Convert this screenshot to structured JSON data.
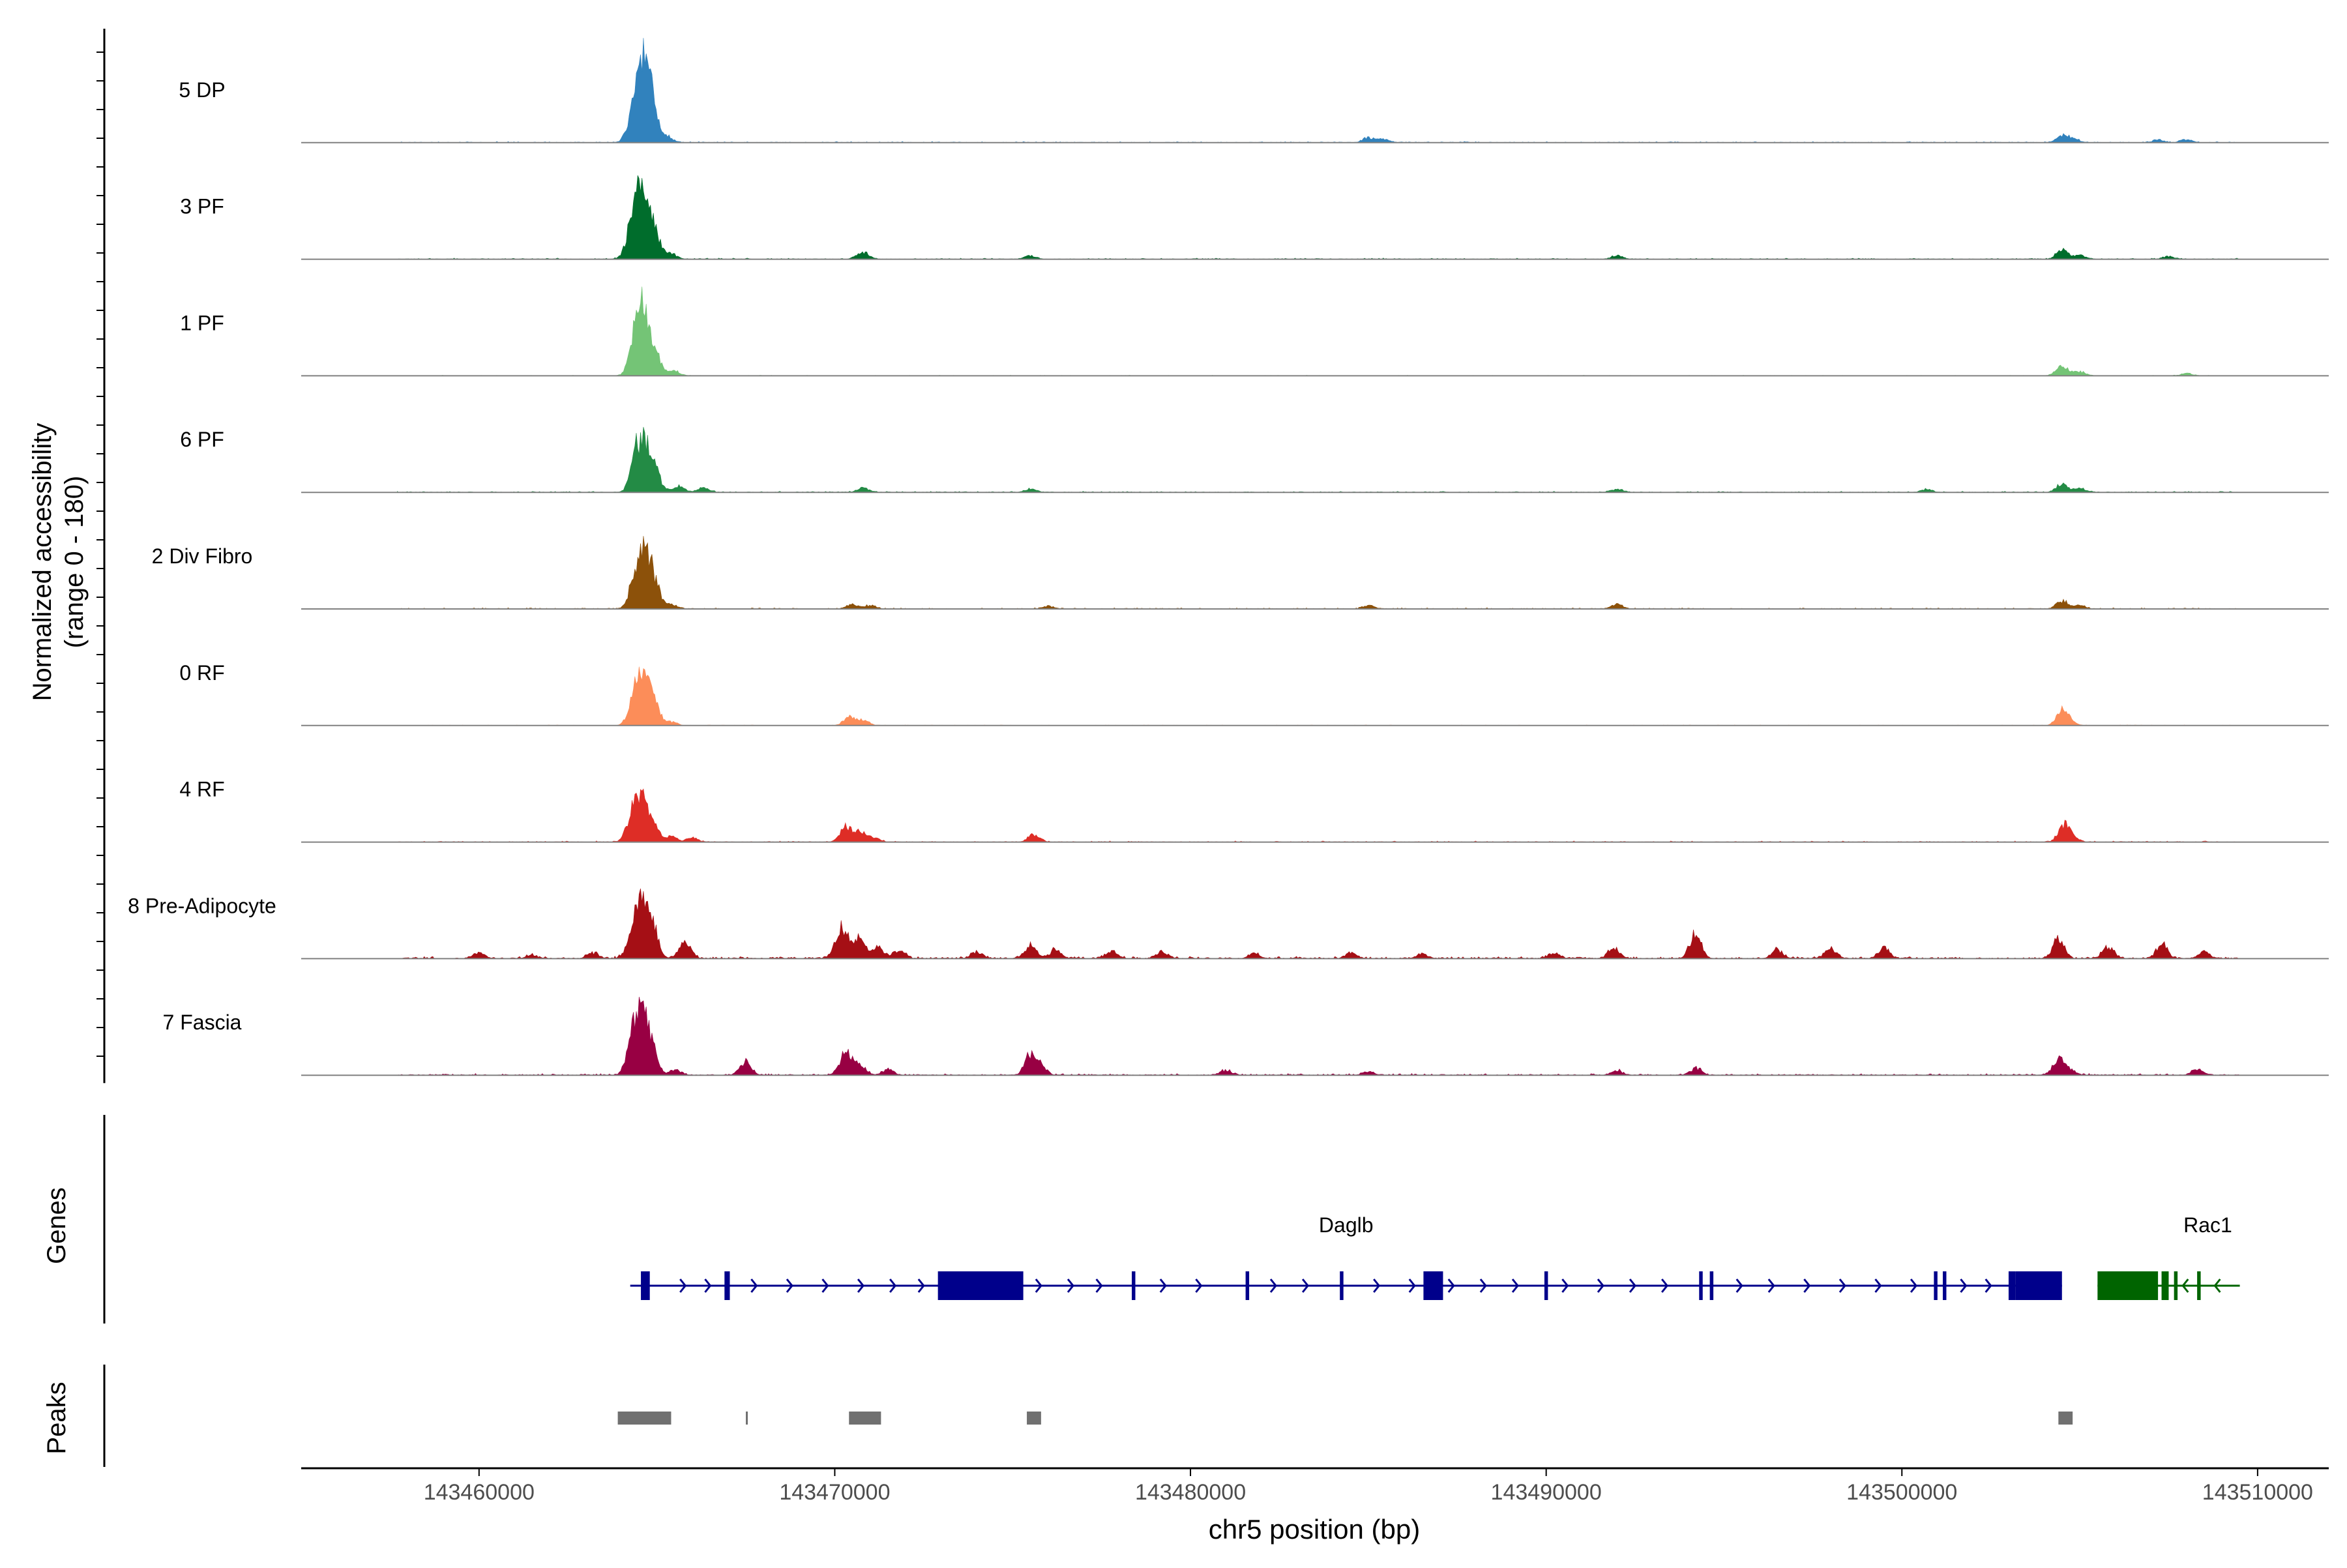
{
  "chart_data": {
    "type": "area",
    "chromosome": "chr5",
    "region": [
      143455000,
      143512000
    ],
    "xlabel": "chr5 position (bp)",
    "xticks": [
      143460000,
      143470000,
      143480000,
      143490000,
      143500000,
      143510000
    ],
    "xtick_labels": [
      "143460000",
      "143470000",
      "143480000",
      "143490000",
      "143500000",
      "143510000"
    ],
    "ylabel_line1": "Normalized accessibility",
    "ylabel_line2": "(range 0 - 180)",
    "yrange": [
      0,
      180
    ],
    "data_extent": [
      143457700,
      143509500
    ],
    "tracks": [
      {
        "name": "5 DP",
        "color": "#3182bd",
        "noise": 2,
        "peaks": [
          [
            143464400,
            70
          ],
          [
            143464650,
            120
          ],
          [
            143464900,
            45
          ],
          [
            143465300,
            10
          ],
          [
            143485000,
            8
          ],
          [
            143485400,
            6
          ],
          [
            143504500,
            12
          ],
          [
            143504800,
            7
          ],
          [
            143507200,
            5
          ],
          [
            143508000,
            5
          ]
        ]
      },
      {
        "name": "3 PF",
        "color": "#006d2c",
        "noise": 2,
        "peaks": [
          [
            143464350,
            65
          ],
          [
            143464600,
            110
          ],
          [
            143464950,
            40
          ],
          [
            143465400,
            10
          ],
          [
            143470800,
            12
          ],
          [
            143475500,
            6
          ],
          [
            143492000,
            6
          ],
          [
            143504500,
            18
          ],
          [
            143505000,
            8
          ],
          [
            143507500,
            5
          ]
        ]
      },
      {
        "name": "1 PF",
        "color": "#74c476",
        "noise": 1,
        "peaks": [
          [
            143464350,
            40
          ],
          [
            143464600,
            120
          ],
          [
            143465000,
            30
          ],
          [
            143465500,
            8
          ],
          [
            143504500,
            20
          ],
          [
            143505000,
            8
          ],
          [
            143508000,
            4
          ]
        ]
      },
      {
        "name": "6 PF",
        "color": "#238b45",
        "noise": 2,
        "peaks": [
          [
            143464400,
            50
          ],
          [
            143464650,
            75
          ],
          [
            143464950,
            35
          ],
          [
            143465600,
            12
          ],
          [
            143466300,
            8
          ],
          [
            143470800,
            8
          ],
          [
            143475500,
            6
          ],
          [
            143492000,
            6
          ],
          [
            143500700,
            5
          ],
          [
            143504500,
            15
          ],
          [
            143505000,
            7
          ]
        ]
      },
      {
        "name": "2 Div Fibro",
        "color": "#8c510a",
        "noise": 2,
        "peaks": [
          [
            143464350,
            40
          ],
          [
            143464650,
            95
          ],
          [
            143464950,
            35
          ],
          [
            143465400,
            8
          ],
          [
            143470500,
            8
          ],
          [
            143471000,
            6
          ],
          [
            143476000,
            5
          ],
          [
            143485000,
            6
          ],
          [
            143492000,
            8
          ],
          [
            143504500,
            15
          ],
          [
            143505000,
            6
          ]
        ]
      },
      {
        "name": "0 RF",
        "color": "#fc8d59",
        "noise": 1,
        "peaks": [
          [
            143464350,
            45
          ],
          [
            143464650,
            90
          ],
          [
            143464950,
            30
          ],
          [
            143465400,
            6
          ],
          [
            143470400,
            15
          ],
          [
            143470800,
            10
          ],
          [
            143504500,
            25
          ],
          [
            143504700,
            8
          ]
        ]
      },
      {
        "name": "4 RF",
        "color": "#de2d26",
        "noise": 2,
        "peaks": [
          [
            143464300,
            40
          ],
          [
            143464550,
            70
          ],
          [
            143464900,
            28
          ],
          [
            143465400,
            10
          ],
          [
            143466000,
            8
          ],
          [
            143470300,
            28
          ],
          [
            143470700,
            18
          ],
          [
            143471100,
            8
          ],
          [
            143475600,
            14
          ],
          [
            143504550,
            30
          ],
          [
            143504800,
            8
          ]
        ]
      },
      {
        "name": "8 Pre-Adipocyte",
        "color": "#a50f15",
        "noise": 4,
        "peaks": [
          [
            143460000,
            10
          ],
          [
            143461500,
            6
          ],
          [
            143463200,
            10
          ],
          [
            143464300,
            40
          ],
          [
            143464600,
            90
          ],
          [
            143464900,
            45
          ],
          [
            143465800,
            30
          ],
          [
            143470200,
            55
          ],
          [
            143470700,
            35
          ],
          [
            143471200,
            20
          ],
          [
            143471800,
            15
          ],
          [
            143474000,
            12
          ],
          [
            143475500,
            25
          ],
          [
            143476200,
            15
          ],
          [
            143477800,
            12
          ],
          [
            143479200,
            12
          ],
          [
            143481800,
            10
          ],
          [
            143484500,
            10
          ],
          [
            143486500,
            8
          ],
          [
            143490200,
            10
          ],
          [
            143491900,
            18
          ],
          [
            143494200,
            45
          ],
          [
            143496500,
            15
          ],
          [
            143498000,
            18
          ],
          [
            143499500,
            20
          ],
          [
            143504400,
            35
          ],
          [
            143505800,
            20
          ],
          [
            143507300,
            25
          ],
          [
            143508500,
            12
          ]
        ]
      },
      {
        "name": "7 Fascia",
        "color": "#980043",
        "noise": 3,
        "peaks": [
          [
            143464300,
            50
          ],
          [
            143464550,
            100
          ],
          [
            143464850,
            45
          ],
          [
            143465500,
            10
          ],
          [
            143467500,
            25
          ],
          [
            143470300,
            40
          ],
          [
            143470700,
            20
          ],
          [
            143471500,
            10
          ],
          [
            143475500,
            35
          ],
          [
            143475800,
            15
          ],
          [
            143481000,
            8
          ],
          [
            143485000,
            6
          ],
          [
            143492000,
            8
          ],
          [
            143494200,
            12
          ],
          [
            143504400,
            28
          ],
          [
            143504700,
            10
          ],
          [
            143508300,
            10
          ]
        ]
      }
    ],
    "genes_label": "Genes",
    "genes": [
      {
        "name": "Daglb",
        "color": "#00008b",
        "strand": "+",
        "start": 143464250,
        "end": 143504500,
        "exons": [
          [
            143464550,
            143464800
          ],
          [
            143466900,
            143467050
          ],
          [
            143472900,
            143475300
          ],
          [
            143478350,
            143478450
          ],
          [
            143481550,
            143481650
          ],
          [
            143484200,
            143484300
          ],
          [
            143486550,
            143487100
          ],
          [
            143489950,
            143490050
          ],
          [
            143494300,
            143494400
          ],
          [
            143494600,
            143494700
          ],
          [
            143500900,
            143501000
          ],
          [
            143501150,
            143501250
          ],
          [
            143503000,
            143503200
          ],
          [
            143503200,
            143504500
          ]
        ],
        "introns_arrow_positions": [
          143465800,
          143466500,
          143467800,
          143468800,
          143469800,
          143470800,
          143471700,
          143472500,
          143475800,
          143476700,
          143477500,
          143479300,
          143480300,
          143482400,
          143483300,
          143485300,
          143486300,
          143487400,
          143488300,
          143489200,
          143490600,
          143491600,
          143492500,
          143493400,
          143495500,
          143496400,
          143497400,
          143498400,
          143499400,
          143500400,
          143501800,
          143502500
        ]
      },
      {
        "name": "Rac1",
        "color": "#006400",
        "strand": "-",
        "start": 143505500,
        "end": 143509500,
        "exons": [
          [
            143505500,
            143507200
          ],
          [
            143507300,
            143507500
          ],
          [
            143507650,
            143507750
          ],
          [
            143508300,
            143508400
          ]
        ],
        "introns_arrow_positions": [
          143507900,
          143508800
        ]
      }
    ],
    "peaks_label": "Peaks",
    "peak_regions": [
      [
        143463900,
        143465400
      ],
      [
        143467500,
        143467550
      ],
      [
        143470400,
        143471300
      ],
      [
        143475400,
        143475800
      ],
      [
        143504400,
        143504800
      ]
    ]
  }
}
